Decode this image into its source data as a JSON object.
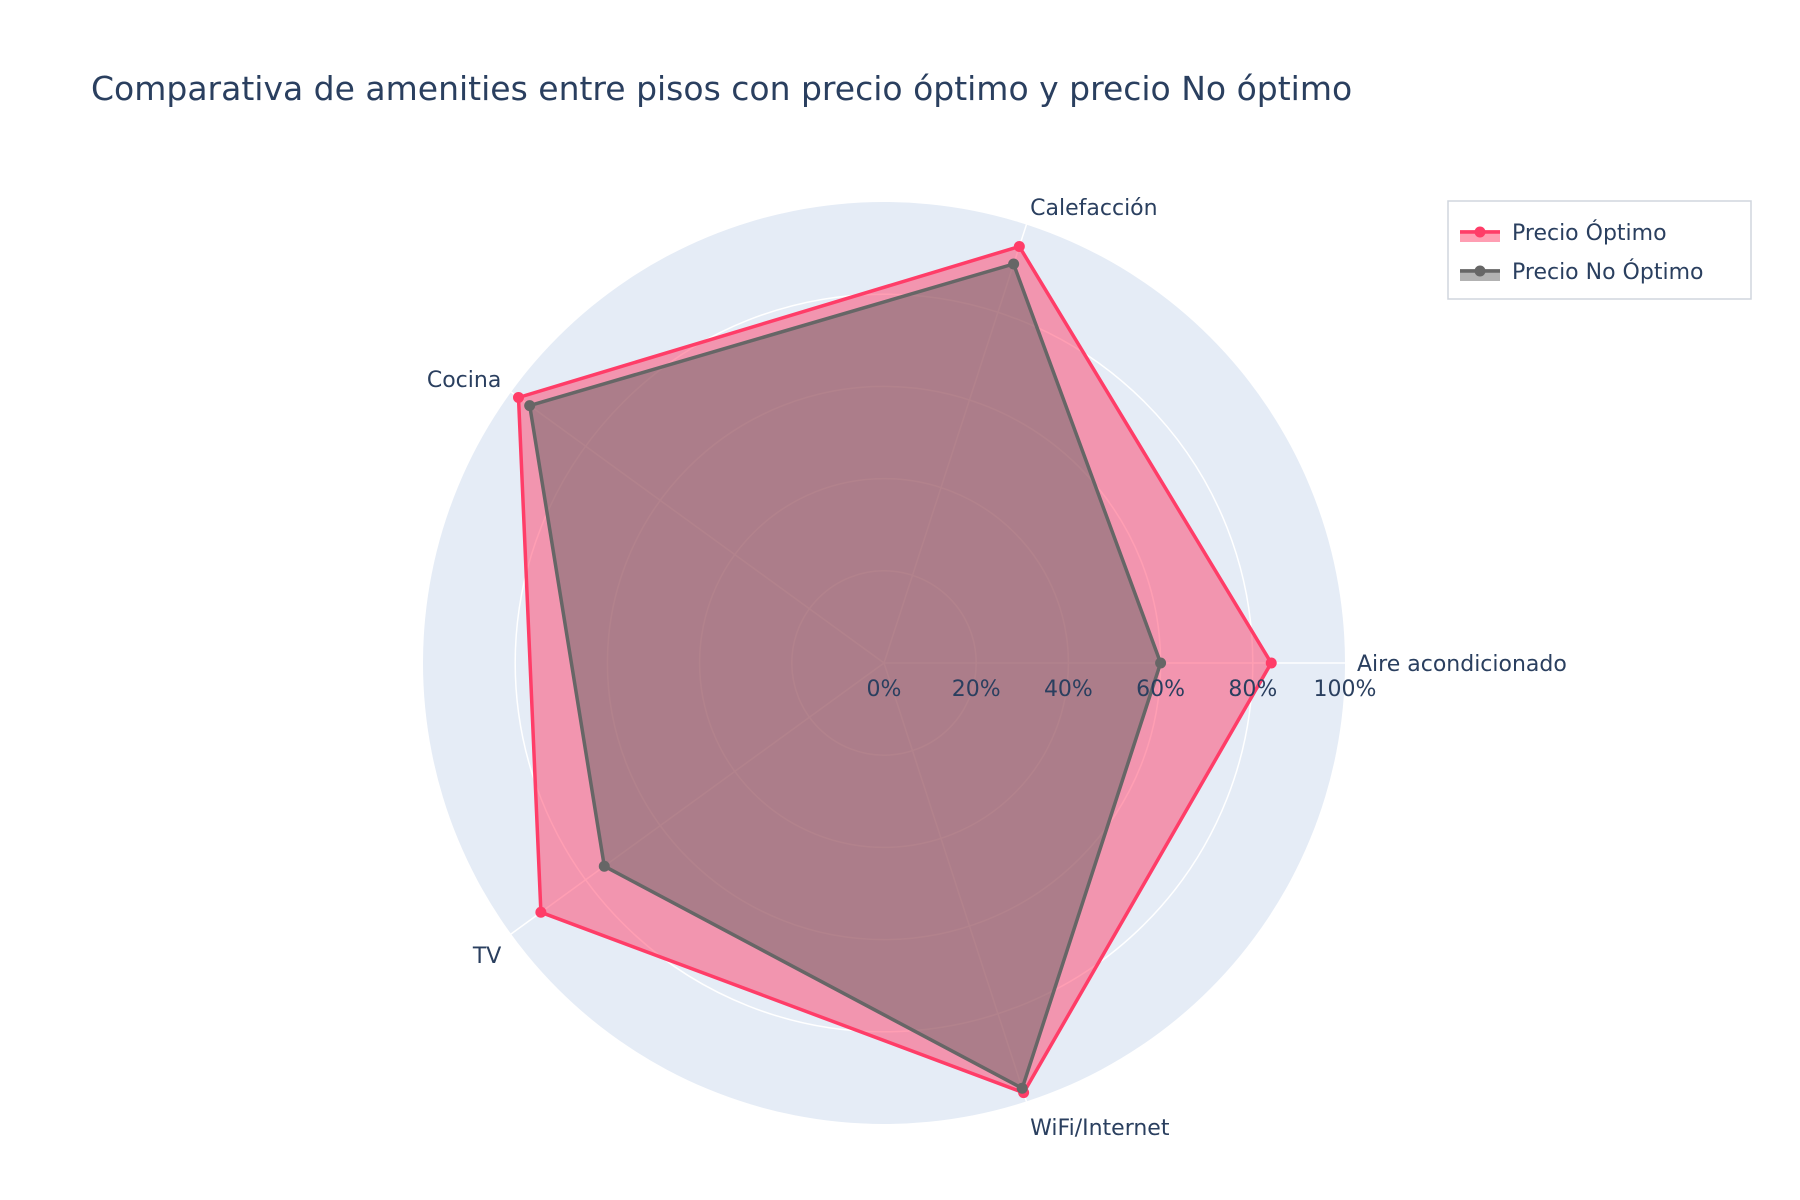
{
  "chart_data": {
    "type": "radar",
    "title": "Comparativa de amenities entre pisos con precio óptimo y precio No óptimo",
    "categories": [
      "Aire acondicionado",
      "Calefacción",
      "Cocina",
      "TV",
      "WiFi/Internet"
    ],
    "radial_range": [
      0,
      100
    ],
    "radial_ticks": [
      "0%",
      "20%",
      "40%",
      "60%",
      "80%",
      "100%"
    ],
    "radial_tick_values": [
      0,
      20,
      40,
      60,
      80,
      100
    ],
    "grid": true,
    "legend_position": "top-right",
    "series": [
      {
        "name": "Precio Óptimo",
        "values": [
          84,
          95,
          98,
          92,
          98
        ],
        "color": "#ff3d68",
        "fill": "rgba(255,61,104,0.5)"
      },
      {
        "name": "Precio No Óptimo",
        "values": [
          60,
          91,
          95,
          75,
          97
        ],
        "color": "#666666",
        "fill": "rgba(102,102,102,0.5)"
      }
    ]
  }
}
